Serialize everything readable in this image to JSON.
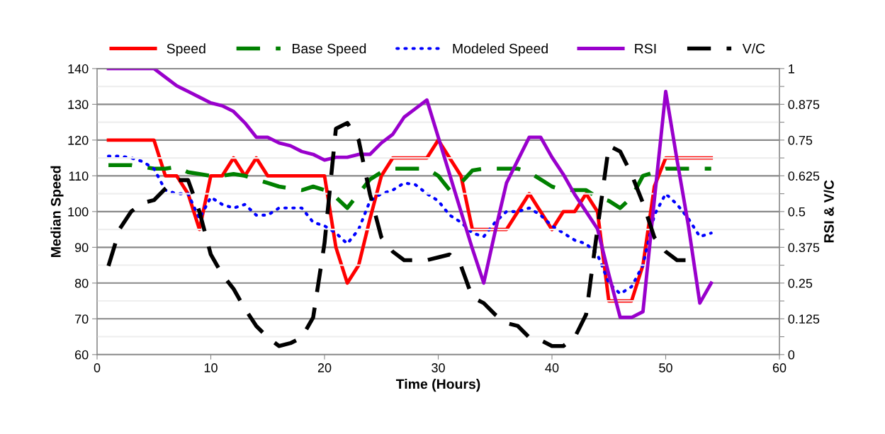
{
  "chart_data": {
    "type": "line",
    "xlabel": "Time (Hours)",
    "ylabel": "Median Speed",
    "y2label": "RSI & V/C",
    "x": [
      1,
      2,
      3,
      4,
      5,
      6,
      7,
      8,
      9,
      10,
      11,
      12,
      13,
      14,
      15,
      16,
      17,
      18,
      19,
      20,
      21,
      22,
      23,
      24,
      25,
      26,
      27,
      28,
      29,
      30,
      31,
      32,
      33,
      34,
      35,
      36,
      37,
      38,
      39,
      40,
      41,
      42,
      43,
      44,
      45,
      46,
      47,
      48,
      49,
      50,
      51,
      52,
      53,
      54
    ],
    "xlim": [
      0,
      60
    ],
    "xticks": [
      0,
      10,
      20,
      30,
      40,
      50,
      60
    ],
    "ylim": [
      60,
      140
    ],
    "yticks": [
      60,
      70,
      80,
      90,
      100,
      110,
      120,
      130,
      140
    ],
    "y2lim": [
      0,
      1
    ],
    "y2ticks": [
      0,
      {
        "value": 0.0625,
        "label": null
      },
      0.125,
      {
        "value": 0.1875,
        "label": null
      },
      0.25,
      {
        "value": 0.3125,
        "label": null
      },
      0.375,
      {
        "value": 0.4375,
        "label": null
      },
      0.5,
      {
        "value": 0.5625,
        "label": null
      },
      0.625,
      {
        "value": 0.6875,
        "label": null
      },
      0.75,
      {
        "value": 0.8125,
        "label": null
      },
      0.875,
      {
        "value": 0.9375,
        "label": null
      },
      1
    ],
    "grid": "y",
    "legend": "top",
    "series": [
      {
        "name": "Speed",
        "color": "#ff0000",
        "line_style": "solid",
        "values": [
          120,
          120,
          120,
          120,
          120,
          110,
          110,
          105,
          95,
          110,
          110,
          115,
          110,
          115,
          110,
          110,
          110,
          110,
          110,
          110,
          90,
          80,
          85,
          98,
          110,
          115,
          115,
          115,
          115,
          120,
          115,
          110,
          95,
          95,
          95,
          95,
          100,
          105,
          100,
          95,
          100,
          100,
          105,
          100,
          75,
          75,
          75,
          85,
          107,
          115,
          115,
          115,
          115,
          115
        ]
      },
      {
        "name": "Base Speed",
        "color": "#008000",
        "line_style": "dashed",
        "values": [
          113,
          113,
          113,
          112.5,
          112,
          112,
          112.5,
          111,
          110.5,
          110,
          110,
          110.5,
          110,
          109,
          108,
          107,
          106.5,
          106,
          107,
          106,
          104,
          101,
          105,
          109,
          111,
          112,
          112,
          112,
          112,
          110,
          106,
          108,
          111.5,
          112,
          112,
          112,
          112,
          111,
          109,
          107,
          106,
          106,
          106,
          104,
          103,
          101,
          104,
          110,
          111,
          112,
          112,
          112,
          112,
          112
        ]
      },
      {
        "name": "Modeled Speed",
        "color": "#0000ff",
        "line_style": "dotted",
        "values": [
          115.5,
          115.5,
          115,
          114,
          112,
          106,
          105,
          105,
          98,
          104,
          102,
          101,
          102,
          99,
          99,
          101,
          101,
          101,
          97,
          96,
          94,
          91,
          95,
          103,
          105,
          106,
          108,
          107.5,
          105,
          103,
          99,
          97,
          94,
          93,
          97,
          100,
          100,
          101,
          99,
          96,
          94,
          92,
          91,
          88,
          80,
          77,
          79,
          85,
          99,
          105,
          102,
          98,
          93,
          94
        ]
      },
      {
        "name": "RSI",
        "color": "#9900cc",
        "line_style": "solid",
        "axis": "y2",
        "values": [
          1,
          1,
          1,
          1,
          1,
          0.97,
          0.94,
          0.92,
          0.9,
          0.88,
          0.87,
          0.85,
          0.81,
          0.76,
          0.76,
          0.74,
          0.73,
          0.71,
          0.7,
          0.68,
          0.69,
          0.69,
          0.7,
          0.7,
          0.74,
          0.77,
          0.83,
          0.86,
          0.89,
          0.76,
          0.63,
          0.5,
          0.37,
          0.25,
          0.43,
          0.6,
          0.68,
          0.76,
          0.76,
          0.69,
          0.63,
          0.56,
          0.5,
          0.44,
          0.28,
          0.13,
          0.13,
          0.15,
          0.54,
          0.92,
          0.68,
          0.45,
          0.18,
          0.25
        ]
      },
      {
        "name": "V/C",
        "color": "#000000",
        "line_style": "dashed",
        "axis": "y2",
        "x": [
          1,
          2,
          3,
          4,
          5,
          6,
          7,
          8,
          9,
          10,
          11,
          12,
          13,
          14,
          15,
          16,
          17,
          18,
          19,
          20,
          21,
          22,
          23,
          24,
          25,
          26,
          27,
          28,
          29,
          30,
          31,
          32,
          33,
          34,
          35,
          36,
          37,
          38,
          39,
          40,
          41,
          42,
          43,
          44,
          45,
          46,
          47,
          48,
          49,
          50,
          51,
          52
        ],
        "values": [
          0.31,
          0.44,
          0.5,
          0.53,
          0.54,
          0.58,
          0.61,
          0.61,
          0.5,
          0.35,
          0.28,
          0.23,
          0.16,
          0.1,
          0.06,
          0.03,
          0.04,
          0.06,
          0.13,
          0.39,
          0.79,
          0.81,
          0.75,
          0.56,
          0.41,
          0.36,
          0.33,
          0.33,
          0.33,
          0.34,
          0.35,
          0.31,
          0.2,
          0.18,
          0.14,
          0.11,
          0.1,
          0.06,
          0.05,
          0.03,
          0.03,
          0.06,
          0.14,
          0.44,
          0.73,
          0.71,
          0.63,
          0.53,
          0.41,
          0.36,
          0.33,
          0.33
        ]
      }
    ]
  }
}
